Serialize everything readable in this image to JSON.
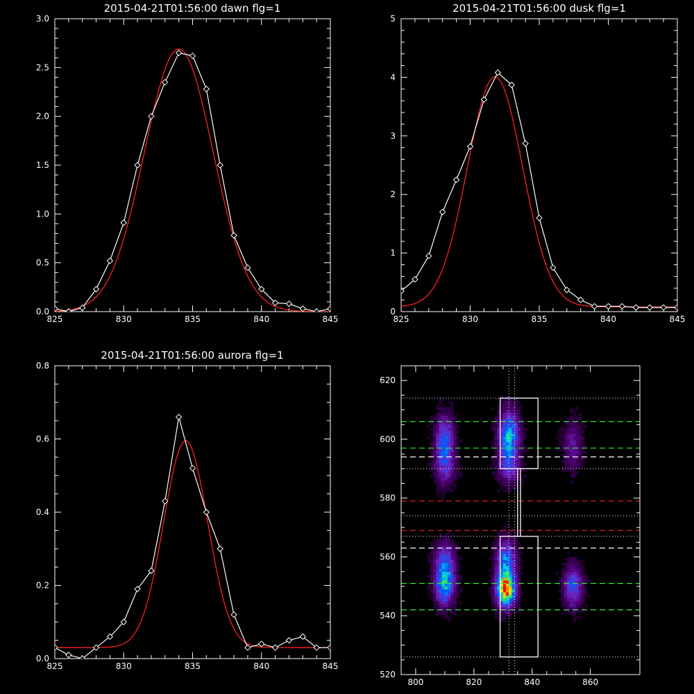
{
  "colors": {
    "background": "#000000",
    "foreground": "#ffffff",
    "fit": "#ff2020",
    "guide_green": "#33ee33",
    "guide_red": "#ee2222",
    "guide_white": "#ffffff"
  },
  "chart_data": [
    {
      "type": "line",
      "title": "2015-04-21T01:56:00 dawn flg=1",
      "xlim": [
        825,
        845
      ],
      "ylim": [
        0,
        3.0
      ],
      "xticks": [
        825,
        830,
        835,
        840,
        845
      ],
      "yticks": [
        0.0,
        0.5,
        1.0,
        1.5,
        2.0,
        2.5,
        3.0
      ],
      "ytick_labels": [
        "0.0",
        "0.5",
        "1.0",
        "1.5",
        "2.0",
        "2.5",
        "3.0"
      ],
      "grid": false,
      "series": [
        {
          "role": "data",
          "color": "#ffffff",
          "marker": "diamond",
          "x": [
            825,
            826,
            827,
            828,
            829,
            830,
            831,
            832,
            833,
            834,
            835,
            836,
            837,
            838,
            839,
            840,
            841,
            842,
            843,
            844,
            845
          ],
          "y": [
            0.03,
            0.0,
            0.04,
            0.23,
            0.52,
            0.91,
            1.5,
            2.0,
            2.35,
            2.65,
            2.62,
            2.28,
            1.5,
            0.78,
            0.45,
            0.23,
            0.09,
            0.08,
            0.03,
            0.0,
            0.03
          ]
        },
        {
          "role": "fit",
          "color": "#ff2020",
          "model": "gaussian",
          "amplitude": 2.69,
          "center": 834.0,
          "sigma": 2.5,
          "baseline": 0.0
        }
      ]
    },
    {
      "type": "line",
      "title": "2015-04-21T01:56:00 dusk flg=1",
      "xlim": [
        825,
        845
      ],
      "ylim": [
        0,
        5
      ],
      "xticks": [
        825,
        830,
        835,
        840,
        845
      ],
      "yticks": [
        0,
        1,
        2,
        3,
        4,
        5
      ],
      "ytick_labels": [
        "0",
        "1",
        "2",
        "3",
        "4",
        "5"
      ],
      "grid": false,
      "series": [
        {
          "role": "data",
          "color": "#ffffff",
          "marker": "diamond",
          "x": [
            825,
            826,
            827,
            828,
            829,
            830,
            831,
            832,
            833,
            834,
            835,
            836,
            837,
            838,
            839,
            840,
            841,
            842,
            843,
            844,
            845
          ],
          "y": [
            0.35,
            0.55,
            0.95,
            1.7,
            2.25,
            2.82,
            3.62,
            4.08,
            3.87,
            2.87,
            1.6,
            0.75,
            0.37,
            0.2,
            0.09,
            0.09,
            0.09,
            0.07,
            0.07,
            0.07,
            0.07
          ]
        },
        {
          "role": "fit",
          "color": "#ff2020",
          "model": "gaussian",
          "amplitude": 3.93,
          "center": 831.8,
          "sigma": 2.0,
          "baseline": 0.08
        }
      ]
    },
    {
      "type": "line",
      "title": "2015-04-21T01:56:00 aurora flg=1",
      "xlim": [
        825,
        845
      ],
      "ylim": [
        0,
        0.8
      ],
      "xticks": [
        825,
        830,
        835,
        840,
        845
      ],
      "yticks": [
        0.0,
        0.2,
        0.4,
        0.6,
        0.8
      ],
      "ytick_labels": [
        "0.0",
        "0.2",
        "0.4",
        "0.6",
        "0.8"
      ],
      "grid": false,
      "series": [
        {
          "role": "data",
          "color": "#ffffff",
          "marker": "diamond",
          "x": [
            825,
            826,
            827,
            828,
            829,
            830,
            831,
            832,
            833,
            834,
            835,
            836,
            837,
            838,
            839,
            840,
            841,
            842,
            843,
            844,
            845
          ],
          "y": [
            0.03,
            0.01,
            0.0,
            0.03,
            0.06,
            0.1,
            0.19,
            0.24,
            0.43,
            0.66,
            0.52,
            0.4,
            0.3,
            0.12,
            0.03,
            0.04,
            0.03,
            0.05,
            0.06,
            0.03,
            0.03
          ]
        },
        {
          "role": "fit",
          "color": "#ff2020",
          "model": "gaussian",
          "amplitude": 0.565,
          "center": 834.5,
          "sigma": 1.6,
          "baseline": 0.03
        }
      ]
    },
    {
      "type": "heatmap",
      "title": "",
      "xlim": [
        795,
        877
      ],
      "ylim": [
        520,
        625
      ],
      "xticks": [
        800,
        820,
        840,
        860
      ],
      "yticks": [
        520,
        540,
        560,
        580,
        600,
        620
      ],
      "colormap": "rainbow (black-purple-blue-cyan-green-yellow-red)",
      "blobs": [
        {
          "cx": 810,
          "cy": 600,
          "sx": 2.2,
          "sy": 5.5,
          "amp": 0.45
        },
        {
          "cx": 810,
          "cy": 590,
          "sx": 2.5,
          "sy": 4.5,
          "amp": 0.25
        },
        {
          "cx": 832,
          "cy": 601,
          "sx": 2.5,
          "sy": 6.0,
          "amp": 0.58
        },
        {
          "cx": 832,
          "cy": 590,
          "sx": 2.5,
          "sy": 4.0,
          "amp": 0.25
        },
        {
          "cx": 854,
          "cy": 598,
          "sx": 2.3,
          "sy": 6.0,
          "amp": 0.22
        },
        {
          "cx": 810,
          "cy": 551,
          "sx": 2.3,
          "sy": 5.0,
          "amp": 0.6
        },
        {
          "cx": 810,
          "cy": 560,
          "sx": 2.5,
          "sy": 4.0,
          "amp": 0.28
        },
        {
          "cx": 831,
          "cy": 549,
          "sx": 2.2,
          "sy": 4.0,
          "amp": 0.98
        },
        {
          "cx": 831,
          "cy": 559,
          "sx": 2.4,
          "sy": 5.0,
          "amp": 0.45
        },
        {
          "cx": 854,
          "cy": 550,
          "sx": 2.3,
          "sy": 5.0,
          "amp": 0.4
        }
      ],
      "guides": {
        "dotted_h": [
          614,
          590,
          574,
          567,
          526
        ],
        "dotted_v": [
          832,
          834
        ],
        "dashed_green": [
          606,
          597,
          551,
          542
        ],
        "dashed_white": [
          594,
          563
        ],
        "dashed_red": [
          579,
          569
        ],
        "boxes": [
          {
            "x": [
              829,
              842
            ],
            "y": [
              590,
              614
            ]
          },
          {
            "x": [
              829,
              842
            ],
            "y": [
              526,
              567
            ]
          },
          {
            "x": [
              835,
              836
            ],
            "y": [
              567,
              590
            ]
          }
        ]
      }
    }
  ]
}
